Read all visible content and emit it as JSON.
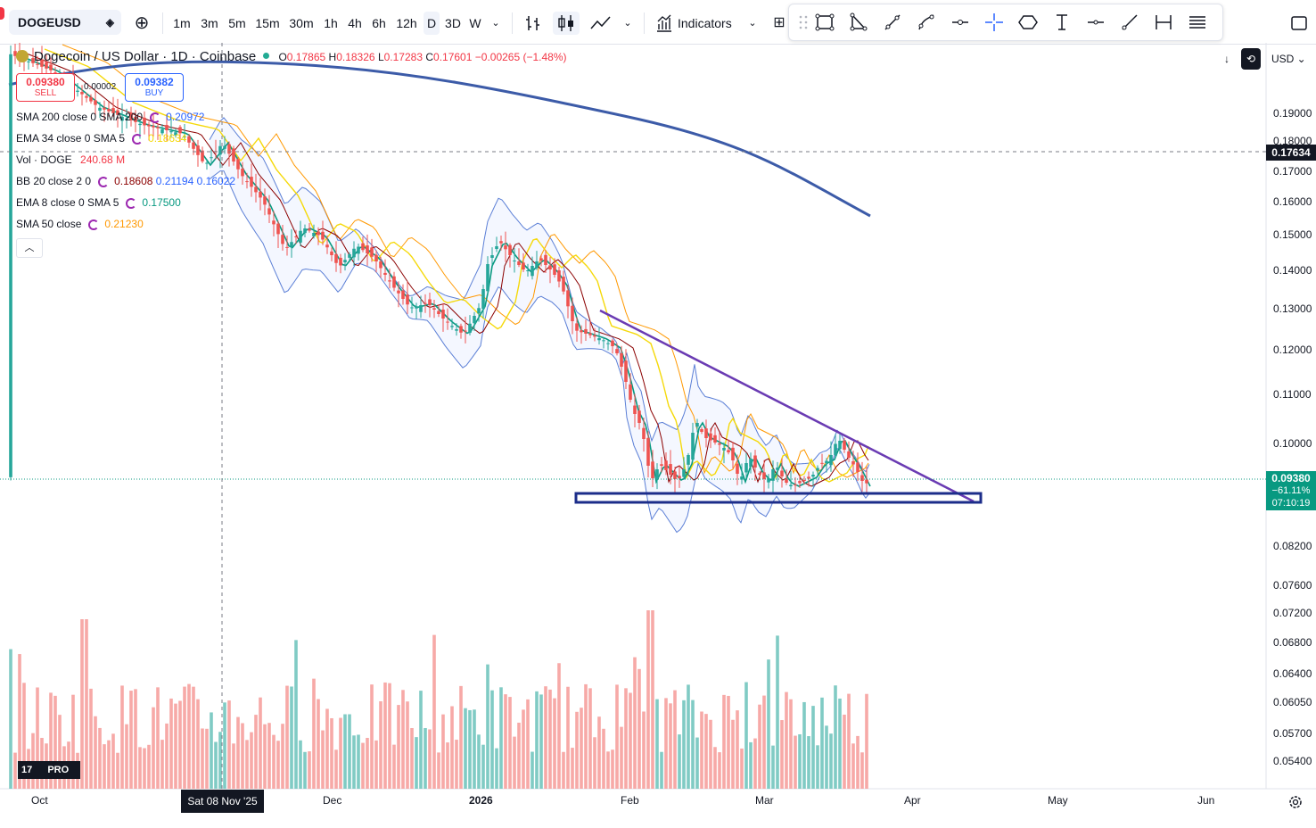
{
  "toolbar": {
    "symbol": "DOGEUSD",
    "intervals": [
      "1m",
      "3m",
      "5m",
      "15m",
      "30m",
      "1h",
      "4h",
      "6h",
      "12h",
      "D",
      "3D",
      "W"
    ],
    "selected_interval": "D",
    "indicators_label": "Indicators"
  },
  "legend": {
    "title": "Dogecoin / US Dollar · 1D · Coinbase",
    "open_label": "O",
    "open": "0.17865",
    "high_label": "H",
    "high": "0.18326",
    "low_label": "L",
    "low": "0.17283",
    "close_label": "C",
    "close": "0.17601",
    "change": "−0.00265 (−1.48%)",
    "sell_price": "0.09380",
    "sell_label": "SELL",
    "buy_price": "0.09382",
    "buy_label": "BUY",
    "spread": "0.00002"
  },
  "indicators": [
    {
      "name": "SMA 200 close 0 SMA 200",
      "value": "0.20972",
      "color": "#2962ff"
    },
    {
      "name": "EMA 34 close 0 SMA 5",
      "value": "0.18634",
      "color": "#f5d90a"
    },
    {
      "name": "Vol · DOGE",
      "value": "240.68 M",
      "color": "#f23645"
    },
    {
      "name": "BB 20 close 2 0",
      "value": "0.18608",
      "value2": "0.21194",
      "value3": "0.16022",
      "color": "#8b0000"
    },
    {
      "name": "EMA 8 close 0 SMA 5",
      "value": "0.17500",
      "color": "#089981"
    },
    {
      "name": "SMA 50 close",
      "value": "0.21230",
      "color": "#ff9800"
    }
  ],
  "price_axis": {
    "ticks": [
      "0.19000",
      "0.18000",
      "0.17000",
      "0.16000",
      "0.15000",
      "0.14000",
      "0.13000",
      "0.12000",
      "0.11000",
      "0.10000",
      "0.08200",
      "0.07600",
      "0.07200",
      "0.06800",
      "0.06400",
      "0.06050",
      "0.05700",
      "0.05400"
    ],
    "crosshair_price": "0.17634",
    "last_price": "0.09380",
    "last_change": "−61.11%",
    "countdown": "07:10:19",
    "currency": "USD"
  },
  "time_axis": {
    "labels": [
      "Oct",
      "Dec",
      "2026",
      "Feb",
      "Mar",
      "Apr",
      "May",
      "Jun"
    ],
    "crosshair_date": "Sat 08 Nov '25"
  },
  "branding": {
    "logo_text": "PRO"
  },
  "colors": {
    "up": "#26a69a",
    "down": "#ef5350",
    "sma200": "#3c5ba8",
    "trendline": "#6a3bb3",
    "support_box": "#1c2d8a"
  }
}
